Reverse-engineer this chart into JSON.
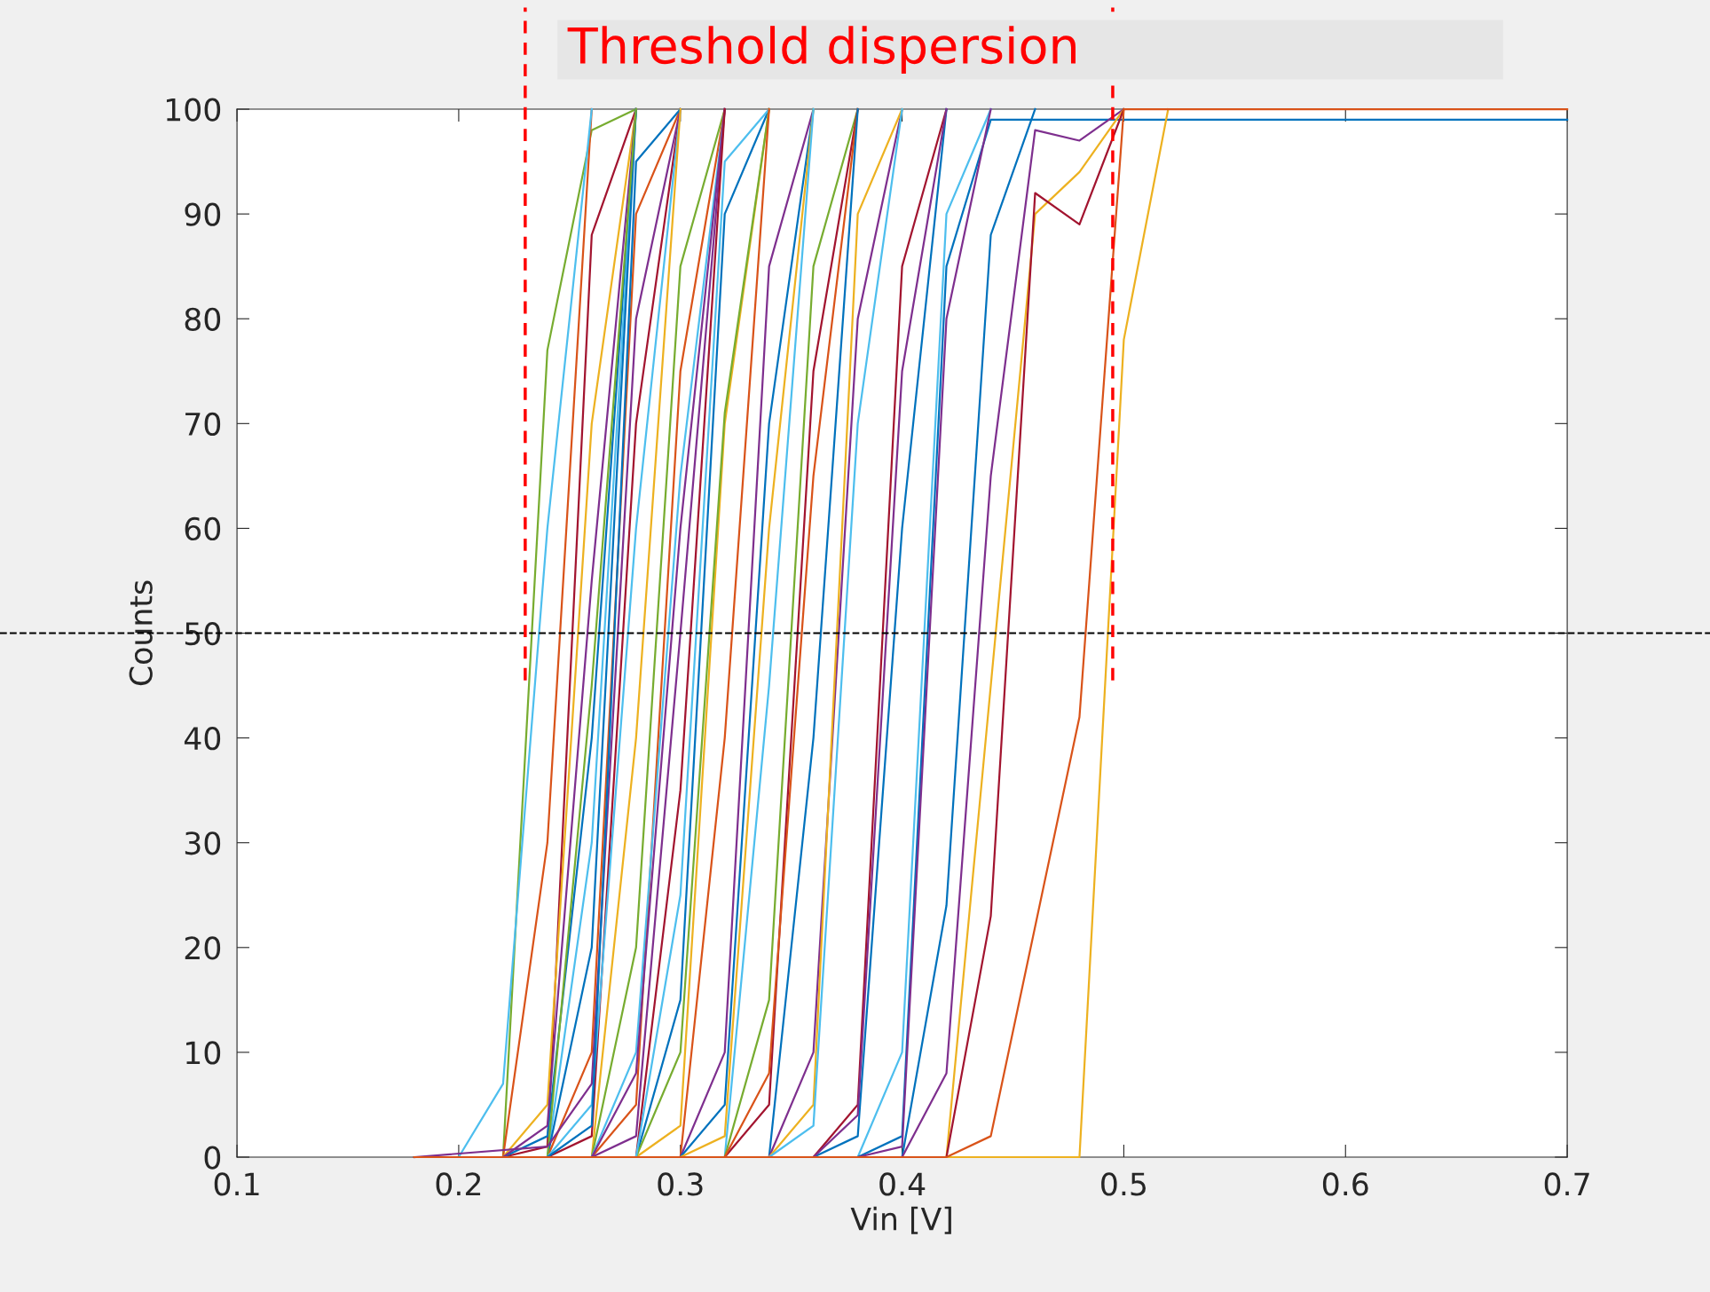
{
  "chart_data": {
    "type": "line",
    "title": "Threshold dispersion",
    "xlabel": "Vin [V]",
    "ylabel": "Counts",
    "xlim": [
      0.1,
      0.7
    ],
    "ylim": [
      0,
      100
    ],
    "xticks": [
      0.1,
      0.2,
      0.3,
      0.4,
      0.5,
      0.6,
      0.7
    ],
    "yticks": [
      0,
      10,
      20,
      30,
      40,
      50,
      60,
      70,
      80,
      90,
      100
    ],
    "grid": false,
    "legend": false,
    "line_style": "solid",
    "marker": "none",
    "ref_lines": [
      {
        "axis": "y",
        "value": 50,
        "color": "#000000",
        "line_style": "dashed"
      },
      {
        "axis": "x",
        "value": 0.23,
        "color": "#ff0000",
        "line_style": "dashed"
      },
      {
        "axis": "x",
        "value": 0.495,
        "color": "#ff0000",
        "line_style": "dashed"
      }
    ],
    "series": [
      {
        "color": "#77ac30",
        "x": [
          0.18,
          0.22,
          0.24,
          0.26,
          0.28
        ],
        "values": [
          0,
          0,
          77,
          98,
          100
        ]
      },
      {
        "color": "#d95319",
        "x": [
          0.18,
          0.22,
          0.24,
          0.26
        ],
        "values": [
          0,
          0,
          30,
          100
        ]
      },
      {
        "color": "#4dbeee",
        "x": [
          0.18,
          0.2,
          0.22,
          0.24,
          0.26
        ],
        "values": [
          0,
          0,
          7,
          60,
          100
        ]
      },
      {
        "color": "#a2142f",
        "x": [
          0.18,
          0.22,
          0.24,
          0.26,
          0.28
        ],
        "values": [
          0,
          0,
          1,
          88,
          100
        ]
      },
      {
        "color": "#0072bd",
        "x": [
          0.18,
          0.22,
          0.24,
          0.26,
          0.28
        ],
        "values": [
          0,
          0,
          2,
          40,
          100
        ]
      },
      {
        "color": "#edb120",
        "x": [
          0.18,
          0.22,
          0.24,
          0.26,
          0.28
        ],
        "values": [
          0,
          0,
          5,
          70,
          100
        ]
      },
      {
        "color": "#7e2f8e",
        "x": [
          0.18,
          0.22,
          0.24,
          0.26,
          0.28
        ],
        "values": [
          0,
          0,
          3,
          55,
          100
        ]
      },
      {
        "color": "#4dbeee",
        "x": [
          0.18,
          0.24,
          0.26,
          0.28
        ],
        "values": [
          0,
          0,
          30,
          100
        ]
      },
      {
        "color": "#0072bd",
        "x": [
          0.18,
          0.24,
          0.26,
          0.28
        ],
        "values": [
          0,
          0,
          20,
          100
        ]
      },
      {
        "color": "#d95319",
        "x": [
          0.18,
          0.24,
          0.26,
          0.28,
          0.3
        ],
        "values": [
          0,
          0,
          10,
          90,
          100
        ]
      },
      {
        "color": "#77ac30",
        "x": [
          0.18,
          0.24,
          0.26,
          0.28
        ],
        "values": [
          0,
          0,
          45,
          100
        ]
      },
      {
        "color": "#a2142f",
        "x": [
          0.18,
          0.24,
          0.26,
          0.28,
          0.3
        ],
        "values": [
          0,
          0,
          2,
          70,
          100
        ]
      },
      {
        "color": "#4dbeee",
        "x": [
          0.18,
          0.24,
          0.26,
          0.28,
          0.3
        ],
        "values": [
          0,
          0,
          5,
          60,
          100
        ]
      },
      {
        "color": "#7e2f8e",
        "x": [
          0.18,
          0.24,
          0.26,
          0.28,
          0.3
        ],
        "values": [
          0,
          1,
          7,
          80,
          100
        ]
      },
      {
        "color": "#0072bd",
        "x": [
          0.18,
          0.24,
          0.26,
          0.28,
          0.3
        ],
        "values": [
          0,
          0,
          3,
          95,
          100
        ]
      },
      {
        "color": "#edb120",
        "x": [
          0.18,
          0.26,
          0.28,
          0.3
        ],
        "values": [
          0,
          0,
          40,
          100
        ]
      },
      {
        "color": "#77ac30",
        "x": [
          0.18,
          0.26,
          0.28,
          0.3,
          0.32
        ],
        "values": [
          0,
          0,
          20,
          85,
          100
        ]
      },
      {
        "color": "#d95319",
        "x": [
          0.18,
          0.26,
          0.28,
          0.3,
          0.32
        ],
        "values": [
          0,
          0,
          5,
          75,
          100
        ]
      },
      {
        "color": "#4dbeee",
        "x": [
          0.18,
          0.26,
          0.28,
          0.3,
          0.32
        ],
        "values": [
          0,
          0,
          10,
          65,
          100
        ]
      },
      {
        "color": "#7e2f8e",
        "x": [
          0.18,
          0.26,
          0.28,
          0.3,
          0.32
        ],
        "values": [
          0,
          0,
          2,
          50,
          100
        ]
      },
      {
        "color": "#7e2f8e",
        "x": [
          0.18,
          0.26,
          0.28,
          0.3,
          0.32
        ],
        "values": [
          0,
          0,
          8,
          60,
          100
        ]
      },
      {
        "color": "#a2142f",
        "x": [
          0.18,
          0.28,
          0.3,
          0.32
        ],
        "values": [
          0,
          0,
          35,
          100
        ]
      },
      {
        "color": "#0072bd",
        "x": [
          0.18,
          0.28,
          0.3,
          0.32,
          0.34
        ],
        "values": [
          0,
          0,
          15,
          90,
          100
        ]
      },
      {
        "color": "#edb120",
        "x": [
          0.18,
          0.28,
          0.3,
          0.32,
          0.34
        ],
        "values": [
          0,
          0,
          3,
          70,
          100
        ]
      },
      {
        "color": "#77ac30",
        "x": [
          0.18,
          0.28,
          0.3,
          0.32,
          0.34
        ],
        "values": [
          0,
          0,
          10,
          71,
          100
        ]
      },
      {
        "color": "#4dbeee",
        "x": [
          0.18,
          0.28,
          0.3,
          0.32,
          0.34
        ],
        "values": [
          0,
          0,
          25,
          95,
          100
        ]
      },
      {
        "color": "#d95319",
        "x": [
          0.18,
          0.3,
          0.32,
          0.34
        ],
        "values": [
          0,
          0,
          40,
          100
        ]
      },
      {
        "color": "#7e2f8e",
        "x": [
          0.18,
          0.3,
          0.32,
          0.34,
          0.36
        ],
        "values": [
          0,
          0,
          10,
          85,
          100
        ]
      },
      {
        "color": "#0072bd",
        "x": [
          0.18,
          0.3,
          0.32,
          0.34,
          0.36
        ],
        "values": [
          0,
          0,
          5,
          70,
          100
        ]
      },
      {
        "color": "#edb120",
        "x": [
          0.18,
          0.3,
          0.32,
          0.34,
          0.36
        ],
        "values": [
          0,
          0,
          2,
          60,
          100
        ]
      },
      {
        "color": "#4dbeee",
        "x": [
          0.18,
          0.32,
          0.34,
          0.36
        ],
        "values": [
          0,
          0,
          45,
          100
        ]
      },
      {
        "color": "#77ac30",
        "x": [
          0.18,
          0.32,
          0.34,
          0.36,
          0.38
        ],
        "values": [
          0,
          0,
          15,
          85,
          100
        ]
      },
      {
        "color": "#a2142f",
        "x": [
          0.18,
          0.32,
          0.34,
          0.36,
          0.38
        ],
        "values": [
          0,
          0,
          5,
          75,
          100
        ]
      },
      {
        "color": "#d95319",
        "x": [
          0.18,
          0.32,
          0.34,
          0.36,
          0.38
        ],
        "values": [
          0,
          0,
          8,
          65,
          100
        ]
      },
      {
        "color": "#0072bd",
        "x": [
          0.18,
          0.34,
          0.36,
          0.38
        ],
        "values": [
          0,
          0,
          40,
          100
        ]
      },
      {
        "color": "#7e2f8e",
        "x": [
          0.18,
          0.34,
          0.36,
          0.38,
          0.4
        ],
        "values": [
          0,
          0,
          10,
          80,
          100
        ]
      },
      {
        "color": "#edb120",
        "x": [
          0.18,
          0.34,
          0.36,
          0.38,
          0.4
        ],
        "values": [
          0,
          0,
          5,
          90,
          100
        ]
      },
      {
        "color": "#4dbeee",
        "x": [
          0.18,
          0.34,
          0.36,
          0.38,
          0.4
        ],
        "values": [
          0,
          0,
          3,
          70,
          100
        ]
      },
      {
        "color": "#a2142f",
        "x": [
          0.18,
          0.36,
          0.38,
          0.4,
          0.42
        ],
        "values": [
          0,
          0,
          5,
          85,
          100
        ]
      },
      {
        "color": "#0072bd",
        "x": [
          0.18,
          0.36,
          0.38,
          0.4,
          0.42
        ],
        "values": [
          0,
          0,
          2,
          60,
          100
        ]
      },
      {
        "color": "#7e2f8e",
        "x": [
          0.18,
          0.36,
          0.38,
          0.4,
          0.42
        ],
        "values": [
          0,
          0,
          4,
          75,
          100
        ]
      },
      {
        "color": "#4dbeee",
        "x": [
          0.18,
          0.38,
          0.4,
          0.42,
          0.44
        ],
        "values": [
          0,
          0,
          10,
          90,
          100
        ]
      },
      {
        "color": "#0072bd",
        "x": [
          0.18,
          0.38,
          0.4,
          0.42,
          0.44,
          0.7
        ],
        "values": [
          0,
          0,
          2,
          85,
          99,
          99
        ]
      },
      {
        "color": "#7e2f8e",
        "x": [
          0.18,
          0.38,
          0.4,
          0.42,
          0.44
        ],
        "values": [
          0,
          0,
          1,
          80,
          100
        ]
      },
      {
        "color": "#0072bd",
        "x": [
          0.18,
          0.4,
          0.42,
          0.44,
          0.46
        ],
        "values": [
          0,
          0,
          24,
          88,
          100
        ]
      },
      {
        "color": "#7e2f8e",
        "x": [
          0.18,
          0.4,
          0.42,
          0.44,
          0.46,
          0.48,
          0.5
        ],
        "values": [
          0,
          0,
          8,
          65,
          98,
          97,
          100
        ]
      },
      {
        "color": "#edb120",
        "x": [
          0.18,
          0.42,
          0.44,
          0.46,
          0.48,
          0.5
        ],
        "values": [
          0,
          0,
          45,
          90,
          94,
          100
        ]
      },
      {
        "color": "#a2142f",
        "x": [
          0.18,
          0.42,
          0.44,
          0.46,
          0.48,
          0.5
        ],
        "values": [
          0,
          0,
          23,
          92,
          89,
          100
        ]
      },
      {
        "color": "#edb120",
        "x": [
          0.18,
          0.48,
          0.5,
          0.52
        ],
        "values": [
          0,
          0,
          78,
          100
        ]
      },
      {
        "color": "#d95319",
        "x": [
          0.18,
          0.42,
          0.44,
          0.48,
          0.5,
          0.7
        ],
        "values": [
          0,
          0,
          2,
          42,
          100,
          100
        ]
      }
    ]
  }
}
